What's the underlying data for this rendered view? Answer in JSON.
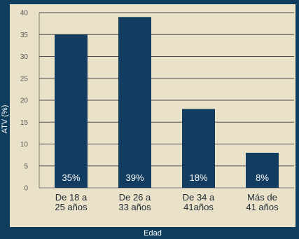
{
  "chart_data": {
    "type": "bar",
    "title": "",
    "xlabel": "Edad",
    "ylabel": "ATV (%)",
    "ylim": [
      0,
      40
    ],
    "yticks": [
      0,
      5,
      10,
      15,
      20,
      25,
      30,
      35,
      40
    ],
    "categories": [
      [
        "De 18 a",
        "25 años"
      ],
      [
        "De 26 a",
        "33 años"
      ],
      [
        "De 34 a",
        "41años"
      ],
      [
        "Más de",
        "41 años"
      ]
    ],
    "values": [
      35,
      39,
      18,
      8
    ],
    "data_labels": [
      "35%",
      "39%",
      "18%",
      "8%"
    ],
    "grid": true,
    "colors": {
      "bar": "#123d60",
      "plot_background": "#e9e2c9",
      "frame": "#0f3d5e",
      "gridline": "#4a4a4a"
    }
  }
}
